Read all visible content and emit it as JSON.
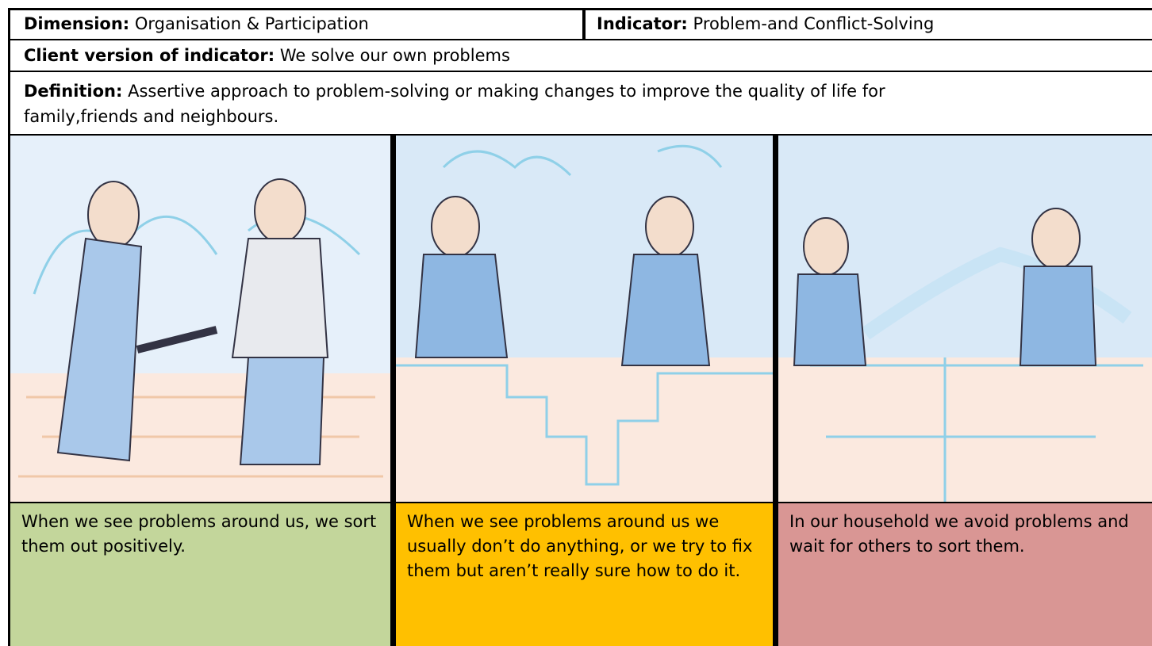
{
  "header": {
    "dimension_label": "Dimension:",
    "dimension": "Organisation & Participation",
    "indicator_label": "Indicator:",
    "indicator": "Problem-and Conflict-Solving",
    "client_label": "Client version of indicator:",
    "client": "We solve our own problems",
    "definition_label": "Definition:",
    "definition_lines": [
      "Assertive approach to problem-solving or making changes to improve the quality of life for",
      "family,friends and neighbours."
    ]
  },
  "levels": [
    {
      "text": "When we see problems around us, we sort them out positively."
    },
    {
      "text": "When we see problems around us we usually don’t do anything, or we try to fix them but aren’t really sure how to do it."
    },
    {
      "text": "In our household we avoid problems and wait for others to sort them."
    }
  ]
}
